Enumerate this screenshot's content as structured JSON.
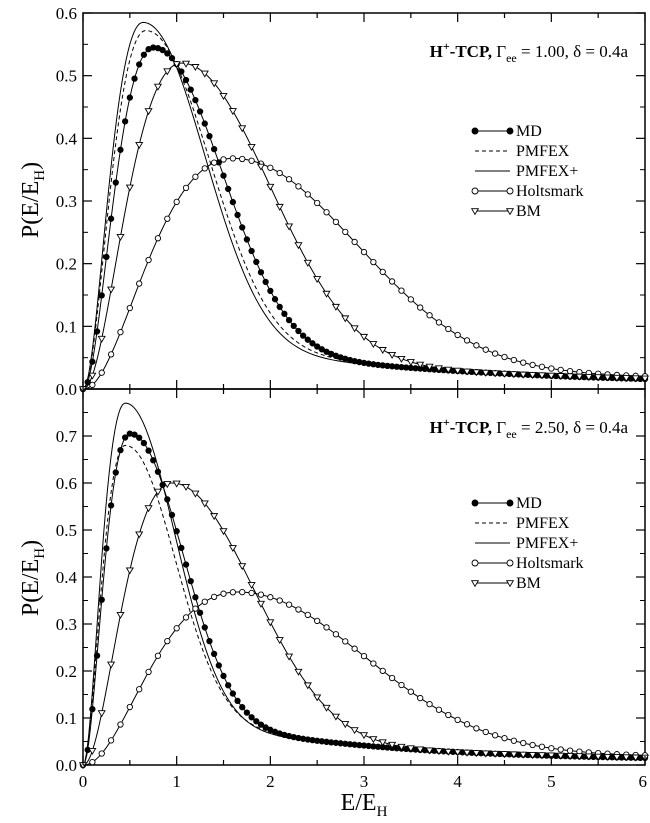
{
  "chart_data": {
    "type": "line",
    "xlabel": "E/E",
    "xlabel_sub": "H",
    "x_ticks": [
      "0",
      "1",
      "2",
      "3",
      "4",
      "5",
      "6"
    ],
    "xlim": [
      0,
      6
    ],
    "panels": [
      {
        "ylabel": "P(E/E",
        "ylabel_sub": "H",
        "ylabel_close": ")",
        "ylim": [
          0,
          0.6
        ],
        "y_ticks": [
          "0.0",
          "0.1",
          "0.2",
          "0.3",
          "0.4",
          "0.5",
          "0.6"
        ],
        "annotation": {
          "bold_a": "H",
          "sup": "+",
          "bold_b": "-TCP, ",
          "gamma": "Γ",
          "gamma_sub": "ee",
          "rest": " = 1.00, δ = 0.4a"
        },
        "legend": [
          "MD",
          "PMFEX",
          "PMFEX+",
          "Holtsmark",
          "BM"
        ],
        "series": [
          {
            "name": "MD",
            "style": "solid-filled-circle",
            "peak_x": 0.75,
            "peak_y": 0.545,
            "tail_slope": 0.016
          },
          {
            "name": "PMFEX",
            "style": "dashed",
            "peak_x": 0.67,
            "peak_y": 0.572,
            "tail_slope": 0.016
          },
          {
            "name": "PMFEX+",
            "style": "solid",
            "peak_x": 0.64,
            "peak_y": 0.585,
            "tail_slope": 0.015
          },
          {
            "name": "Holtsmark",
            "style": "solid-open-circle",
            "peak_x": 1.6,
            "peak_y": 0.368,
            "tail_slope": 0.022
          },
          {
            "name": "BM",
            "style": "solid-open-triangle",
            "peak_x": 1.05,
            "peak_y": 0.52,
            "tail_slope": 0.017
          }
        ]
      },
      {
        "ylabel": "P(E/E",
        "ylabel_sub": "H",
        "ylabel_close": ")",
        "ylim": [
          0,
          0.8
        ],
        "y_ticks": [
          "0.0",
          "0.1",
          "0.2",
          "0.3",
          "0.4",
          "0.5",
          "0.6",
          "0.7"
        ],
        "annotation": {
          "bold_a": "H",
          "sup": "+",
          "bold_b": "-TCP, ",
          "gamma": "Γ",
          "gamma_sub": "ee",
          "rest": " = 2.50, δ = 0.4a"
        },
        "legend": [
          "MD",
          "PMFEX",
          "PMFEX+",
          "Holtsmark",
          "BM"
        ],
        "series": [
          {
            "name": "MD",
            "style": "solid-filled-circle",
            "peak_x": 0.5,
            "peak_y": 0.705,
            "tail_slope": 0.015
          },
          {
            "name": "PMFEX",
            "style": "dashed",
            "peak_x": 0.45,
            "peak_y": 0.68,
            "tail_slope": 0.015
          },
          {
            "name": "PMFEX+",
            "style": "solid",
            "peak_x": 0.45,
            "peak_y": 0.77,
            "tail_slope": 0.014
          },
          {
            "name": "Holtsmark",
            "style": "solid-open-circle",
            "peak_x": 1.65,
            "peak_y": 0.368,
            "tail_slope": 0.022
          },
          {
            "name": "BM",
            "style": "solid-open-triangle",
            "peak_x": 0.95,
            "peak_y": 0.6,
            "tail_slope": 0.016
          }
        ]
      }
    ]
  }
}
